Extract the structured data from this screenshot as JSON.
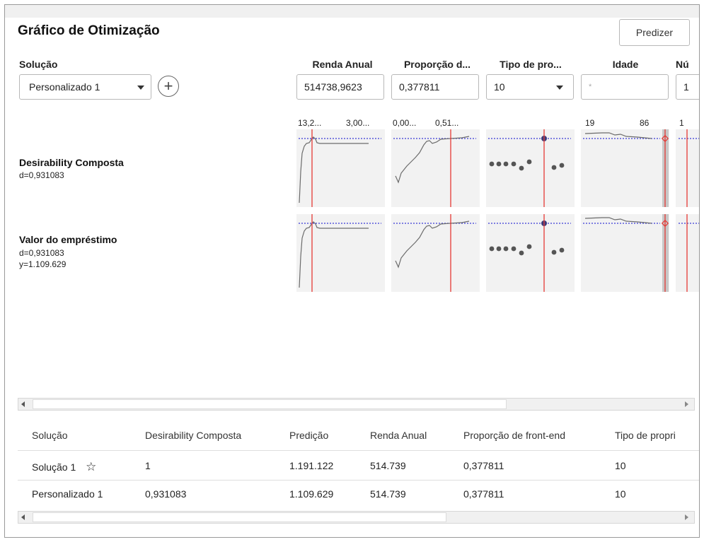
{
  "title": "Gráfico de Otimização",
  "predict_button": "Predizer",
  "solution": {
    "label": "Solução",
    "selected": "Personalizado 1"
  },
  "variables": [
    {
      "header": "Renda Anual",
      "value": "514738,9623",
      "range_low": "13,2...",
      "range_high": "3,00..."
    },
    {
      "header": "Proporção d...",
      "value": "0,377811",
      "range_low": "0,00...",
      "range_high": "0,51..."
    },
    {
      "header": "Tipo de pro...",
      "value": "10",
      "range_low": "",
      "range_high": ""
    },
    {
      "header": "Idade",
      "value": "",
      "placeholder": "*",
      "range_low": "19",
      "range_high": "86"
    },
    {
      "header": "Nú",
      "value": "1",
      "range_low": "1",
      "range_high": ""
    }
  ],
  "rows": [
    {
      "name": "Desirability Composta",
      "d": "d=0,931083",
      "y": ""
    },
    {
      "name": "Valor do empréstimo",
      "d": "d=0,931083",
      "y": "y=1.109.629"
    }
  ],
  "table": {
    "headers": [
      "Solução",
      "Desirability Composta",
      "Predição",
      "Renda Anual",
      "Proporção de front-end",
      "Tipo de propri"
    ],
    "rows": [
      [
        "Solução 1",
        "1",
        "1.191.122",
        "514.739",
        "0,377811",
        "10"
      ],
      [
        "Personalizado 1",
        "0,931083",
        "1.109.629",
        "514.739",
        "0,377811",
        "10"
      ]
    ]
  },
  "colors": {
    "reference_line": "#e53935",
    "target_line": "#3b3bd6",
    "curve": "#6b6b6b",
    "panel_bg": "#f2f2f2"
  }
}
